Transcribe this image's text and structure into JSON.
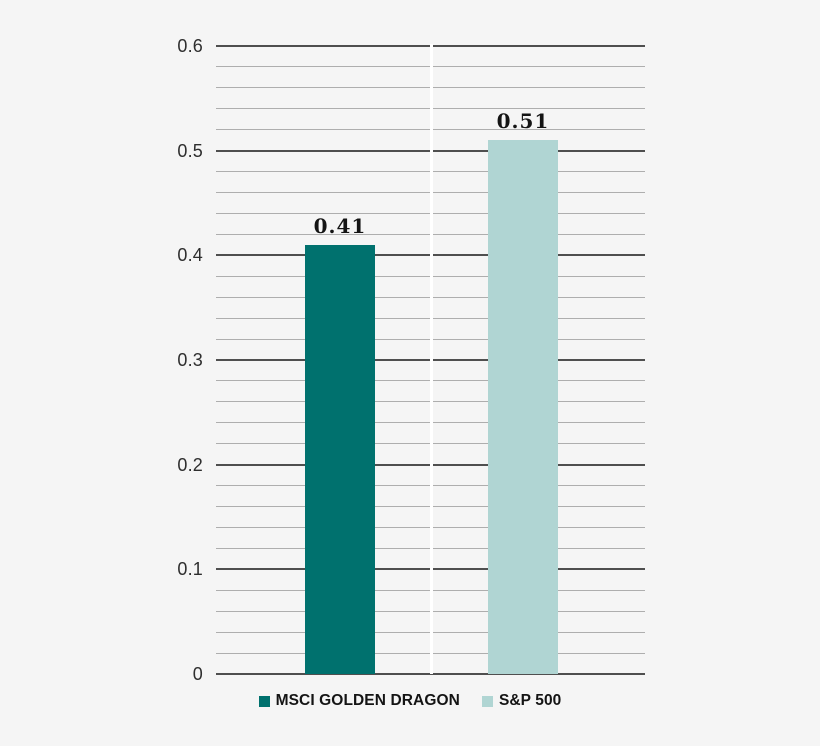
{
  "chart_data": {
    "type": "bar",
    "title": "",
    "xlabel": "",
    "ylabel": "",
    "categories": [
      "MSCI GOLDEN DRAGON",
      "S&P 500"
    ],
    "values": [
      0.41,
      0.51
    ],
    "value_labels": [
      "0.41",
      "0.51"
    ],
    "bar_colors": [
      "#00716e",
      "#b0d5d3"
    ],
    "ylim": [
      0,
      0.6
    ],
    "y_major_step": 0.1,
    "y_minor_step": 0.02,
    "y_tick_labels": [
      "0",
      "0.1",
      "0.2",
      "0.3",
      "0.4",
      "0.5",
      "0.6"
    ],
    "grid": "horizontal-only",
    "legend_position": "bottom-center",
    "legend": [
      {
        "label": "MSCI GOLDEN DRAGON",
        "color": "#00716e"
      },
      {
        "label": "S&P 500",
        "color": "#b0d5d3"
      }
    ]
  },
  "colors": {
    "background": "#f5f5f5",
    "major_gridline": "#4f4f4f",
    "minor_gridline": "#aeaeae",
    "axis_label_text": "#2e2e2e",
    "value_label_text": "#141414",
    "legend_text": "#141414",
    "category_divider": "#ffffff"
  }
}
